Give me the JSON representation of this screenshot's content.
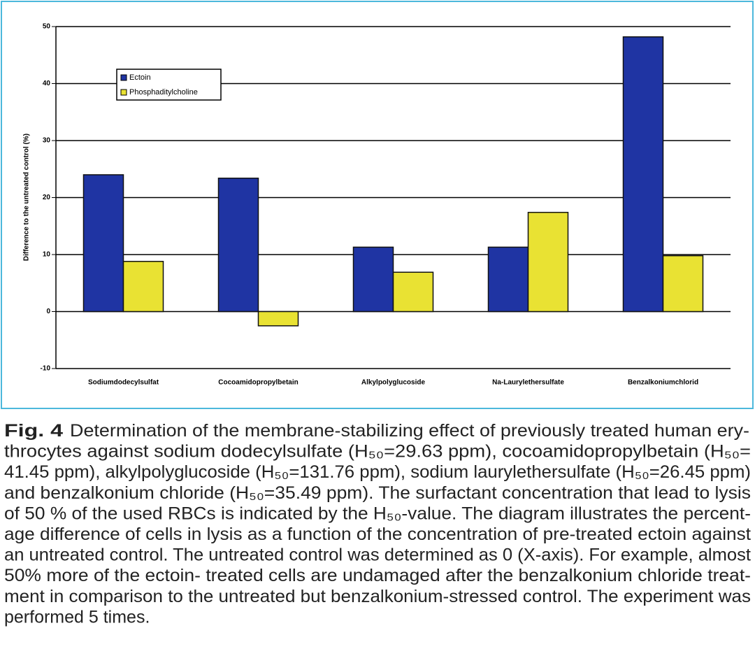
{
  "chart_data": {
    "type": "bar",
    "y_label": "Difference to the untreated control (%)",
    "categories": [
      "Sodiumdodecylsulfat",
      "Cocoamidopropylbetain",
      "Alkylpolyglucoside",
      "Na-Laurylethersulfate",
      "Benzalkoniumchlorid"
    ],
    "series": [
      {
        "name": "Ectoin",
        "color": "#1f34a3",
        "values": [
          24.0,
          23.4,
          11.3,
          11.3,
          48.2
        ]
      },
      {
        "name": "Phosphaditylcholine",
        "color": "#e9e233",
        "values": [
          8.8,
          -2.5,
          6.9,
          17.4,
          9.8
        ]
      }
    ],
    "ylim": [
      -10,
      50
    ],
    "yticks": [
      -10,
      0,
      10,
      20,
      30,
      40,
      50
    ],
    "grid": true,
    "legend": "upper left"
  },
  "caption": {
    "label": "Fig. 4",
    "lines": [
      "Determination of the membrane-stabilizing effect of previously treated human ery-",
      "throcytes against sodium dodecylsulfate (H₅₀=29.63 ppm), cocoamidopropylbetain (H₅₀=",
      "41.45 ppm), alkylpolyglucoside (H₅₀=131.76 ppm), sodium laurylethersulfate (H₅₀=26.45 ppm)",
      "and benzalkonium chloride (H₅₀=35.49 ppm). The surfactant concentration that lead to lysis",
      "of 50 % of the used RBCs is indicated by the H₅₀-value. The diagram illustrates the percent-",
      "age difference of cells in lysis as a function of the concentration of pre-treated ectoin against",
      "an untreated control. The untreated control was determined as 0 (X-axis). For example, almost",
      "50% more of the ectoin- treated cells are undamaged after the benzalkonium chloride treat-",
      "ment in comparison to the untreated but benzalkonium-stressed control. The experiment was",
      "performed 5 times."
    ]
  }
}
